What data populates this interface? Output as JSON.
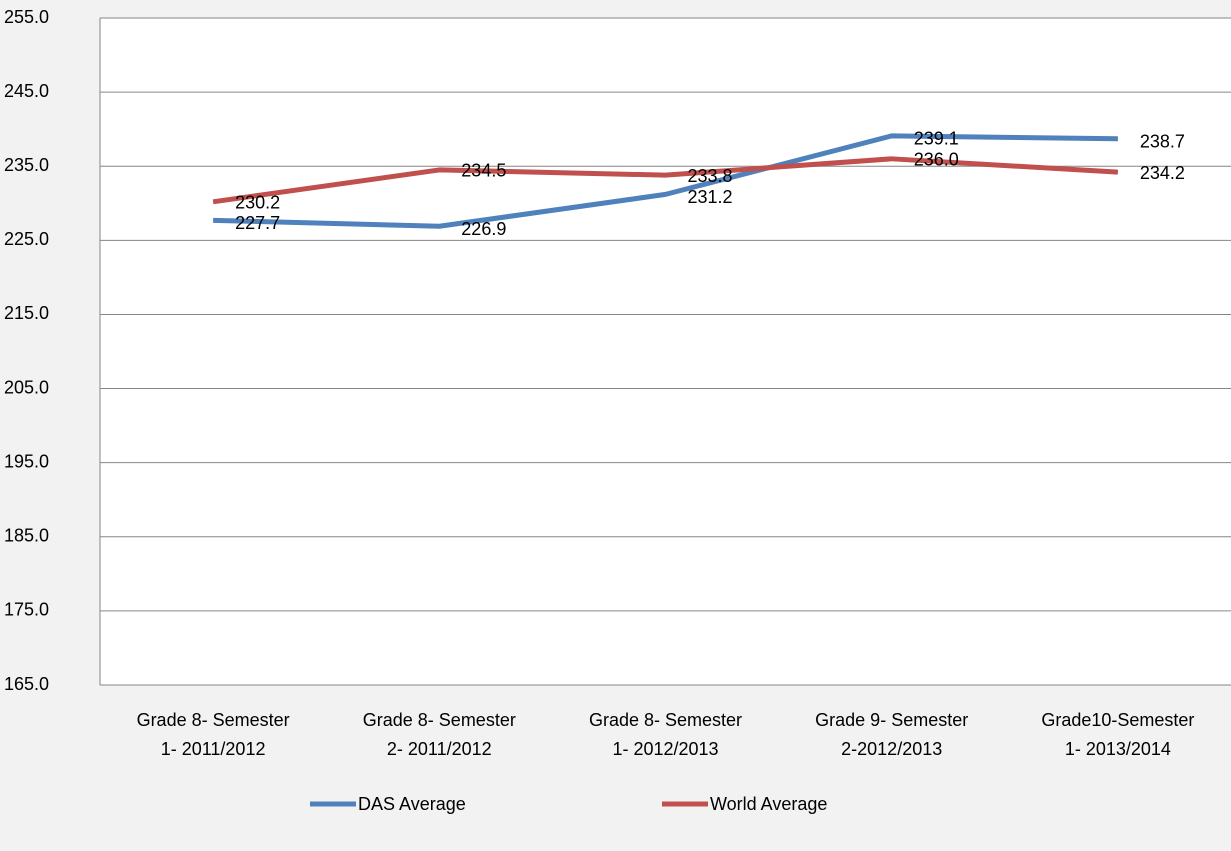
{
  "chart_data": {
    "type": "line",
    "categories": [
      "Grade 8- Semester\n1- 2011/2012",
      "Grade 8- Semester\n2- 2011/2012",
      "Grade 8- Semester\n1- 2012/2013",
      "Grade 9- Semester\n2-2012/2013",
      "Grade10-Semester\n1- 2013/2014"
    ],
    "series": [
      {
        "name": "DAS Average",
        "color": "#4f81bd",
        "values": [
          227.7,
          226.9,
          231.2,
          239.1,
          238.7
        ],
        "value_labels": [
          "227.7",
          "226.9",
          "231.2",
          "239.1",
          "238.7"
        ]
      },
      {
        "name": "World Average",
        "color": "#c0504d",
        "values": [
          230.2,
          234.5,
          233.8,
          236.0,
          234.2
        ],
        "value_labels": [
          "230.2",
          "234.5",
          "233.8",
          "236.0",
          "234.2"
        ]
      }
    ],
    "ylim": [
      165,
      255
    ],
    "yticks": [
      {
        "value": 165,
        "label": "165.0"
      },
      {
        "value": 175,
        "label": "175.0"
      },
      {
        "value": 185,
        "label": "185.0"
      },
      {
        "value": 195,
        "label": "195.0"
      },
      {
        "value": 205,
        "label": "205.0"
      },
      {
        "value": 215,
        "label": "215.0"
      },
      {
        "value": 225,
        "label": "225.0"
      },
      {
        "value": 235,
        "label": "235.0"
      },
      {
        "value": 245,
        "label": "245.0"
      },
      {
        "value": 255,
        "label": "255.0"
      }
    ],
    "grid": true,
    "legend": "bottom"
  }
}
